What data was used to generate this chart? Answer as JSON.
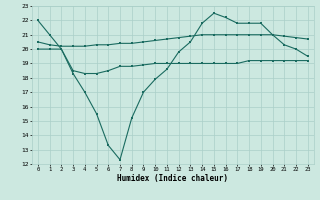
{
  "xlabel": "Humidex (Indice chaleur)",
  "xlim": [
    -0.5,
    23.5
  ],
  "ylim": [
    12,
    23
  ],
  "yticks": [
    12,
    13,
    14,
    15,
    16,
    17,
    18,
    19,
    20,
    21,
    22,
    23
  ],
  "xticks": [
    0,
    1,
    2,
    3,
    4,
    5,
    6,
    7,
    8,
    9,
    10,
    11,
    12,
    13,
    14,
    15,
    16,
    17,
    18,
    19,
    20,
    21,
    22,
    23
  ],
  "background_color": "#cce8e0",
  "grid_color": "#aacfc8",
  "line_color": "#1a6b60",
  "line1_y": [
    22.0,
    21.0,
    20.0,
    18.3,
    17.0,
    15.5,
    13.3,
    12.3,
    15.2,
    17.0,
    17.9,
    18.6,
    19.8,
    20.5,
    21.8,
    22.5,
    22.2,
    21.8,
    21.8,
    21.8,
    21.0,
    20.3,
    20.0,
    19.5
  ],
  "line2_y": [
    20.5,
    20.3,
    20.2,
    20.2,
    20.2,
    20.3,
    20.3,
    20.4,
    20.4,
    20.5,
    20.6,
    20.7,
    20.8,
    20.9,
    21.0,
    21.0,
    21.0,
    21.0,
    21.0,
    21.0,
    21.0,
    20.9,
    20.8,
    20.7
  ],
  "line3_y": [
    20.0,
    20.0,
    20.0,
    18.5,
    18.3,
    18.3,
    18.5,
    18.8,
    18.8,
    18.9,
    19.0,
    19.0,
    19.0,
    19.0,
    19.0,
    19.0,
    19.0,
    19.0,
    19.2,
    19.2,
    19.2,
    19.2,
    19.2,
    19.2
  ]
}
